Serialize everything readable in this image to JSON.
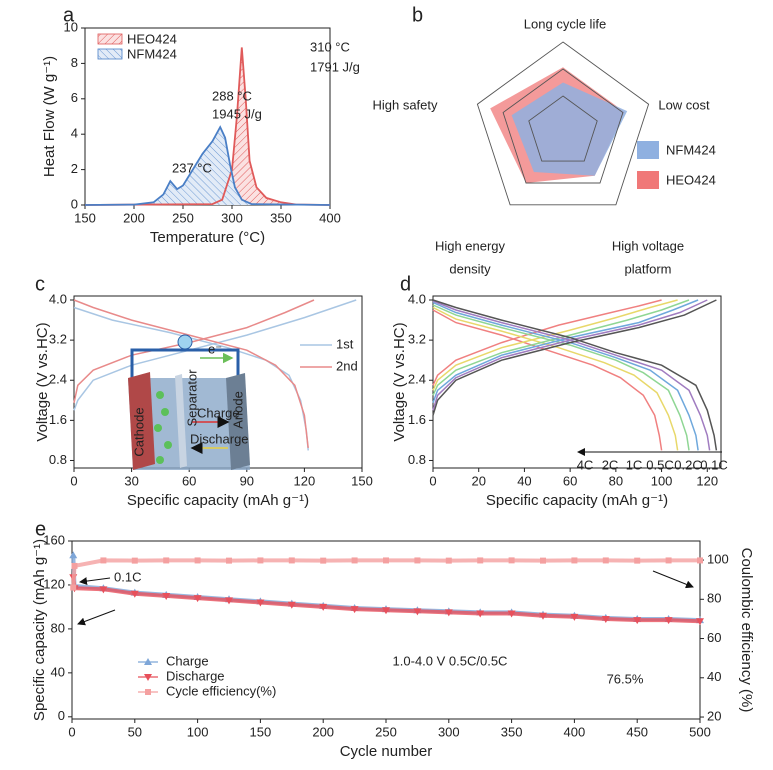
{
  "chart_data": [
    {
      "type": "area",
      "panel": "a",
      "xlabel": "Temperature (°C)",
      "ylabel": "Heat Flow (W g⁻¹)",
      "xlim": [
        150,
        400
      ],
      "xticks": [
        150,
        200,
        250,
        300,
        350,
        400
      ],
      "ylim": [
        0,
        10
      ],
      "yticks": [
        0,
        2,
        4,
        6,
        8,
        10
      ],
      "series": [
        {
          "name": "HEO424",
          "color": "#e05a5a",
          "x": [
            150,
            280,
            290,
            300,
            305,
            310,
            314,
            318,
            325,
            335,
            350,
            365,
            400
          ],
          "values": [
            0,
            0.05,
            0.3,
            2,
            5,
            8.9,
            6,
            2.5,
            1,
            0.4,
            0.15,
            0.03,
            0
          ]
        },
        {
          "name": "NFM424",
          "color": "#4a7fc6",
          "x": [
            150,
            200,
            220,
            230,
            237,
            244,
            250,
            260,
            270,
            280,
            288,
            293,
            298,
            303,
            310,
            320,
            400
          ],
          "values": [
            0,
            0.02,
            0.15,
            0.6,
            1.35,
            0.9,
            1.1,
            2,
            2.9,
            3.6,
            4.4,
            3.8,
            2.3,
            1,
            0.3,
            0.05,
            0
          ]
        }
      ],
      "annotations": [
        "237 °C",
        "288 °C",
        "1945 J/g",
        "310 °C",
        "1791 J/g"
      ]
    },
    {
      "type": "radar",
      "panel": "b",
      "axes": [
        "Long cycle life",
        "Low cost",
        [
          "High voltage",
          "platform"
        ],
        [
          "High energy",
          "density"
        ],
        "High safety"
      ],
      "rlim": [
        0,
        5
      ],
      "rticks": [
        2,
        3.5,
        5
      ],
      "series": [
        {
          "name": "NFM424",
          "color": "#8fb0e0",
          "values": [
            2.75,
            3.75,
            3,
            2.75,
            3
          ]
        },
        {
          "name": "HEO424",
          "color": "#f07878",
          "values": [
            3.6,
            3.6,
            3,
            3.5,
            4.25
          ]
        }
      ]
    },
    {
      "type": "line",
      "panel": "c",
      "xlabel": "Specific capacity (mAh g⁻¹)",
      "ylabel": "Voltage (V vs.HC)",
      "xlim": [
        0,
        150
      ],
      "xticks": [
        0,
        30,
        60,
        90,
        120,
        150
      ],
      "ylim": [
        0.65,
        4.08
      ],
      "yticks": [
        {
          "value": 0.8,
          "label": "0.8"
        },
        1.6,
        2.4,
        3.2,
        {
          "value": 4,
          "label": "4.0"
        }
      ],
      "series": [
        {
          "name": "1st",
          "color": "#a9c6e3",
          "charge": {
            "x": [
              0,
              2,
              10,
              30,
              60,
              90,
              120,
              147
            ],
            "values": [
              1.8,
              2.0,
              2.4,
              2.7,
              3.0,
              3.3,
              3.65,
              4.0
            ]
          },
          "discharge": {
            "x": [
              0,
              20,
              50,
              80,
              100,
              112,
              118,
              121,
              122
            ],
            "values": [
              3.85,
              3.6,
              3.35,
              3.05,
              2.8,
              2.5,
              2.0,
              1.4,
              1.0
            ]
          }
        },
        {
          "name": "2nd",
          "color": "#e88a8a",
          "charge": {
            "x": [
              0,
              2,
              10,
              30,
              60,
              90,
              110,
              125
            ],
            "values": [
              1.95,
              2.3,
              2.6,
              2.9,
              3.15,
              3.45,
              3.75,
              4.0
            ]
          },
          "discharge": {
            "x": [
              0,
              10,
              30,
              60,
              90,
              105,
              115,
              120,
              122
            ],
            "values": [
              4.0,
              3.85,
              3.6,
              3.3,
              3.0,
              2.7,
              2.3,
              1.7,
              1.05
            ]
          }
        }
      ],
      "inset_labels": {
        "electron": "e⁻",
        "charge": "Charge",
        "discharge": "Discharge",
        "cathode": "Cathode",
        "separator": "Separator",
        "anode": "Anode"
      }
    },
    {
      "type": "line",
      "panel": "d",
      "xlabel": "Specific capacity (mAh g⁻¹)",
      "ylabel": "Voltage (V vs.HC)",
      "xlim": [
        0,
        126
      ],
      "xticks": [
        0,
        20,
        40,
        60,
        80,
        100,
        120
      ],
      "ylim": [
        0.65,
        4.08
      ],
      "yticks": [
        {
          "value": 0.8,
          "label": "0.8"
        },
        1.6,
        2.4,
        3.2,
        {
          "value": 4,
          "label": "4.0"
        }
      ],
      "series": [
        {
          "name": "4C",
          "color": "#f08080",
          "charge": {
            "x": [
              0,
              2,
              10,
              30,
              55,
              75,
              90,
              100
            ],
            "values": [
              2.3,
              2.5,
              2.8,
              3.15,
              3.5,
              3.72,
              3.88,
              4.0
            ]
          },
          "discharge": {
            "x": [
              0,
              10,
              30,
              50,
              70,
              82,
              92,
              97,
              99,
              100
            ],
            "values": [
              3.8,
              3.55,
              3.3,
              3.0,
              2.7,
              2.45,
              2.1,
              1.7,
              1.3,
              1.0
            ]
          }
        },
        {
          "name": "2C",
          "color": "#e8d86a",
          "charge": {
            "x": [
              0,
              2,
              10,
              30,
              60,
              80,
              95,
              107
            ],
            "values": [
              2.2,
              2.4,
              2.7,
              3.05,
              3.4,
              3.65,
              3.85,
              4.0
            ]
          },
          "discharge": {
            "x": [
              0,
              10,
              30,
              55,
              75,
              88,
              98,
              103,
              106,
              107
            ],
            "values": [
              3.85,
              3.62,
              3.38,
              3.05,
              2.75,
              2.5,
              2.15,
              1.7,
              1.3,
              1.0
            ]
          }
        },
        {
          "name": "1C",
          "color": "#8fd694",
          "charge": {
            "x": [
              0,
              2,
              10,
              30,
              60,
              85,
              100,
              112
            ],
            "values": [
              2.1,
              2.3,
              2.6,
              2.95,
              3.3,
              3.6,
              3.8,
              4.0
            ]
          },
          "discharge": {
            "x": [
              0,
              10,
              30,
              60,
              80,
              92,
              103,
              108,
              111,
              112
            ],
            "values": [
              3.9,
              3.7,
              3.45,
              3.1,
              2.8,
              2.55,
              2.2,
              1.7,
              1.3,
              1.0
            ]
          }
        },
        {
          "name": "0.5C",
          "color": "#6fa8dc",
          "charge": {
            "x": [
              0,
              2,
              10,
              30,
              60,
              90,
              105,
              116
            ],
            "values": [
              1.95,
              2.2,
              2.5,
              2.9,
              3.25,
              3.55,
              3.8,
              4.0
            ]
          },
          "discharge": {
            "x": [
              0,
              10,
              30,
              60,
              80,
              95,
              107,
              112,
              115,
              116
            ],
            "values": [
              3.95,
              3.75,
              3.5,
              3.15,
              2.85,
              2.6,
              2.2,
              1.7,
              1.3,
              1.0
            ]
          }
        },
        {
          "name": "0.2C",
          "color": "#a07cc0",
          "charge": {
            "x": [
              0,
              2,
              10,
              30,
              60,
              90,
              108,
              120
            ],
            "values": [
              1.8,
              2.1,
              2.45,
              2.85,
              3.2,
              3.5,
              3.75,
              4.0
            ]
          },
          "discharge": {
            "x": [
              0,
              10,
              30,
              60,
              80,
              100,
              112,
              117,
              120,
              121
            ],
            "values": [
              3.98,
              3.8,
              3.55,
              3.2,
              2.9,
              2.6,
              2.2,
              1.7,
              1.3,
              1.0
            ]
          }
        },
        {
          "name": "0.1C",
          "color": "#555555",
          "charge": {
            "x": [
              0,
              2,
              10,
              30,
              60,
              90,
              110,
              124
            ],
            "values": [
              1.7,
              2.0,
              2.4,
              2.8,
              3.15,
              3.45,
              3.7,
              4.0
            ]
          },
          "discharge": {
            "x": [
              0,
              10,
              30,
              60,
              80,
              100,
              115,
              120,
              123,
              124
            ],
            "values": [
              4.0,
              3.85,
              3.6,
              3.25,
              2.95,
              2.7,
              2.3,
              1.8,
              1.3,
              1.0
            ]
          }
        }
      ]
    },
    {
      "type": "line",
      "panel": "e",
      "xlabel": "Cycle number",
      "ylabel": "Specific capacity (mAh g⁻¹)",
      "y2label": "Coulombic efficiency (%)",
      "xlim": [
        0,
        500
      ],
      "xticks": [
        0,
        50,
        100,
        150,
        200,
        250,
        300,
        350,
        400,
        450,
        500
      ],
      "ylim": [
        -2,
        160
      ],
      "yticks": [
        0,
        40,
        80,
        120,
        160
      ],
      "y2lim": [
        19,
        109.7
      ],
      "y2ticks": [
        20,
        40,
        60,
        80,
        100
      ],
      "x": [
        1,
        2,
        25,
        50,
        75,
        100,
        125,
        150,
        175,
        200,
        225,
        250,
        275,
        300,
        325,
        350,
        375,
        400,
        425,
        450,
        475,
        500
      ],
      "series": [
        {
          "name": "Charge",
          "color": "#7ea6d8",
          "marker": "triangle-up",
          "values": [
            147,
            119,
            117,
            113,
            111,
            109,
            107,
            105,
            103,
            101,
            99,
            98,
            97,
            96,
            95,
            95,
            93,
            92,
            90,
            89,
            89,
            88
          ]
        },
        {
          "name": "Discharge",
          "color": "#e8505b",
          "marker": "triangle-down",
          "values": [
            127,
            117,
            116,
            112,
            110,
            108,
            106,
            104,
            102,
            100,
            98,
            97,
            96,
            95,
            94,
            94,
            92,
            91,
            89,
            88,
            88,
            87
          ]
        },
        {
          "name": "Cycle efficiency(%)",
          "color": "#f4a0a0",
          "marker": "square",
          "axis": "y2",
          "values": [
            86,
            97,
            99.8,
            99.7,
            99.8,
            99.8,
            99.7,
            99.8,
            99.8,
            99.7,
            99.8,
            99.8,
            99.8,
            99.7,
            99.8,
            99.8,
            99.7,
            99.8,
            99.8,
            99.7,
            99.8,
            99.8
          ]
        }
      ],
      "annotations": [
        "0.1C",
        "1.0-4.0 V 0.5C/0.5C",
        "76.5%"
      ]
    }
  ]
}
